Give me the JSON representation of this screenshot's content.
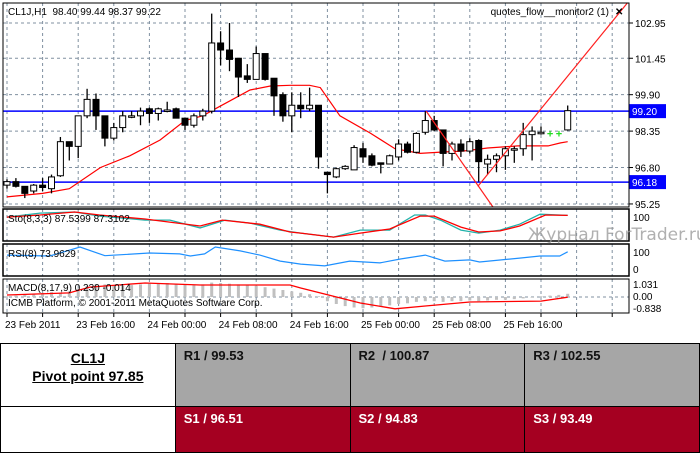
{
  "header": {
    "symbol_info": "CL1J,H1  98.40 99.44 98.37 99.22",
    "indicator_name": "quotes_flow__monitor2 (1)",
    "close_glyph": "✕"
  },
  "indicators": {
    "stoch_label": "Sto(8,3,3) 87.5399 87.3102",
    "rsi_label": "RSI(8) 73.9629",
    "macd_label": "MACD(8,17,9) 0.230 -0.014",
    "copyright": "ICMB Platform, © 2001-2011 MetaQuotes Software Corp."
  },
  "watermark": "Журнал ForTrader.ru",
  "colors": {
    "up_body": "#ffffff",
    "down_body": "#000000",
    "ma": "#ff0000",
    "level": "#0000ff",
    "stoch_main": "#20b2aa",
    "stoch_signal": "#ff0000",
    "rsi": "#1e90ff",
    "macd_hist": "#c0c0c0",
    "macd_signal": "#ff0000",
    "resistance_bg": "#a6a6a6",
    "support_bg": "#a50021"
  },
  "chart_data": {
    "type": "candlestick",
    "title": "CL1J,H1",
    "price_ticks": [
      "102.95",
      "101.45",
      "99.90",
      "98.35",
      "96.80",
      "95.25"
    ],
    "price_tick_values": [
      102.95,
      101.45,
      99.9,
      98.35,
      96.8,
      95.25
    ],
    "level_lines": [
      {
        "label": "99.20",
        "value": 99.2
      },
      {
        "label": "96.18",
        "value": 96.18
      }
    ],
    "time_labels": [
      {
        "label": "23 Feb 2011",
        "index": 0
      },
      {
        "label": "23 Feb 16:00",
        "index": 8
      },
      {
        "label": "24 Feb 00:00",
        "index": 16
      },
      {
        "label": "24 Feb 08:00",
        "index": 24
      },
      {
        "label": "24 Feb 16:00",
        "index": 32
      },
      {
        "label": "25 Feb 00:00",
        "index": 40
      },
      {
        "label": "25 Feb 08:00",
        "index": 48
      },
      {
        "label": "25 Feb 16:00",
        "index": 56
      }
    ],
    "ohlc": [
      [
        96.05,
        96.3,
        95.9,
        96.2
      ],
      [
        96.2,
        96.35,
        95.95,
        96.0
      ],
      [
        96.0,
        96.0,
        95.5,
        95.7
      ],
      [
        95.8,
        96.1,
        95.7,
        96.05
      ],
      [
        96.05,
        96.35,
        95.8,
        95.95
      ],
      [
        95.9,
        96.5,
        95.7,
        96.4
      ],
      [
        96.45,
        98.1,
        96.4,
        97.9
      ],
      [
        97.9,
        97.9,
        97.1,
        97.7
      ],
      [
        97.7,
        99.0,
        97.2,
        99.0
      ],
      [
        99.0,
        100.15,
        98.9,
        99.7
      ],
      [
        99.7,
        99.95,
        98.4,
        99.0
      ],
      [
        99.0,
        99.0,
        97.7,
        98.05
      ],
      [
        98.05,
        98.7,
        97.95,
        98.5
      ],
      [
        98.5,
        99.2,
        98.3,
        99.0
      ],
      [
        98.95,
        99.2,
        98.9,
        99.0
      ],
      [
        99.0,
        99.35,
        98.6,
        99.2
      ],
      [
        99.3,
        99.35,
        98.7,
        99.1
      ],
      [
        99.1,
        99.35,
        98.8,
        99.3
      ],
      [
        99.2,
        99.6,
        99.15,
        99.25
      ],
      [
        99.3,
        99.35,
        98.9,
        98.9
      ],
      [
        98.9,
        98.9,
        98.4,
        98.6
      ],
      [
        98.6,
        99.1,
        98.5,
        99.0
      ],
      [
        99.0,
        99.3,
        98.8,
        99.2
      ],
      [
        99.2,
        103.35,
        99.1,
        102.1
      ],
      [
        102.1,
        102.6,
        101.15,
        101.8
      ],
      [
        101.8,
        102.95,
        100.9,
        101.4
      ],
      [
        101.45,
        101.45,
        99.8,
        100.65
      ],
      [
        100.7,
        101.2,
        100.4,
        100.55
      ],
      [
        100.55,
        101.95,
        100.55,
        101.65
      ],
      [
        101.65,
        101.65,
        100.5,
        100.55
      ],
      [
        100.6,
        100.6,
        99.0,
        99.85
      ],
      [
        99.9,
        100.0,
        98.75,
        99.0
      ],
      [
        99.0,
        100.0,
        98.3,
        99.45
      ],
      [
        99.45,
        100.0,
        98.9,
        99.3
      ],
      [
        99.3,
        100.2,
        99.2,
        99.45
      ],
      [
        99.45,
        99.45,
        96.75,
        97.25
      ],
      [
        96.6,
        96.6,
        95.7,
        96.5
      ],
      [
        96.4,
        96.8,
        96.35,
        96.75
      ],
      [
        96.75,
        96.9,
        96.7,
        96.85
      ],
      [
        96.7,
        97.75,
        96.7,
        97.65
      ],
      [
        97.6,
        97.85,
        97.0,
        97.25
      ],
      [
        97.3,
        97.4,
        96.85,
        96.9
      ],
      [
        97.0,
        97.0,
        96.55,
        96.95
      ],
      [
        96.95,
        97.35,
        96.95,
        97.3
      ],
      [
        97.25,
        98.0,
        97.1,
        97.8
      ],
      [
        97.8,
        97.9,
        97.4,
        97.45
      ],
      [
        97.45,
        98.3,
        97.4,
        98.25
      ],
      [
        98.3,
        99.2,
        98.2,
        98.8
      ],
      [
        98.8,
        99.0,
        98.35,
        98.4
      ],
      [
        98.4,
        98.4,
        96.85,
        97.4
      ],
      [
        97.4,
        97.9,
        97.1,
        97.8
      ],
      [
        97.8,
        98.0,
        97.25,
        97.5
      ],
      [
        97.5,
        98.05,
        97.4,
        97.9
      ],
      [
        97.95,
        98.0,
        96.2,
        97.05
      ],
      [
        96.95,
        97.35,
        96.5,
        97.15
      ],
      [
        97.15,
        97.4,
        96.6,
        97.3
      ],
      [
        97.3,
        97.7,
        96.7,
        97.6
      ],
      [
        97.55,
        97.7,
        97.0,
        97.6
      ],
      [
        97.6,
        98.7,
        97.3,
        98.2
      ],
      [
        98.2,
        98.55,
        97.1,
        98.35
      ],
      [
        98.3,
        98.55,
        98.2,
        98.3
      ],
      null,
      null,
      [
        98.4,
        99.44,
        98.37,
        99.22
      ]
    ],
    "flow_markers": [
      [
        61,
        98.25
      ],
      [
        62,
        98.25
      ]
    ],
    "moving_average": [
      [
        0,
        95.55
      ],
      [
        4,
        95.7
      ],
      [
        7,
        95.9
      ],
      [
        10.5,
        96.8
      ],
      [
        13.8,
        97.3
      ],
      [
        17.2,
        97.97
      ],
      [
        20,
        98.8
      ],
      [
        22,
        99.0
      ],
      [
        23.4,
        99.3
      ],
      [
        27.3,
        100.1
      ],
      [
        29.6,
        100.27
      ],
      [
        31.8,
        100.3
      ],
      [
        34,
        100.3
      ],
      [
        35.2,
        100.2
      ],
      [
        37.4,
        99.0
      ],
      [
        40.8,
        98.27
      ],
      [
        43.6,
        97.6
      ],
      [
        46.4,
        97.4
      ],
      [
        49,
        97.46
      ],
      [
        51.2,
        97.5
      ],
      [
        54,
        97.63
      ],
      [
        57.4,
        97.72
      ],
      [
        60.8,
        97.72
      ],
      [
        62.2,
        97.85
      ],
      [
        63,
        97.9
      ]
    ],
    "trendlines": [
      [
        [
          47.1,
          99.2
        ],
        [
          54.6,
          95.12
        ]
      ],
      [
        [
          52.9,
          96.0
        ],
        [
          69.7,
          103.8
        ]
      ]
    ],
    "stochastic": {
      "range": [
        0,
        100
      ],
      "axis_label": "100",
      "main": [
        [
          0,
          81
        ],
        [
          3.7,
          96
        ],
        [
          7.6,
          100
        ],
        [
          10.4,
          85
        ],
        [
          15.5,
          70
        ],
        [
          18.3,
          70
        ],
        [
          21.7,
          41
        ],
        [
          24.5,
          70
        ],
        [
          27.3,
          59
        ],
        [
          30.7,
          33
        ],
        [
          33,
          22
        ],
        [
          36.7,
          7
        ],
        [
          39.7,
          33
        ],
        [
          43,
          33
        ],
        [
          45.8,
          89
        ],
        [
          47,
          89
        ],
        [
          48.7,
          70
        ],
        [
          51,
          33
        ],
        [
          53,
          22
        ],
        [
          55.4,
          33
        ],
        [
          57.6,
          55
        ],
        [
          59.9,
          92
        ],
        [
          63,
          87.54
        ]
      ],
      "signal": [
        [
          0,
          81
        ],
        [
          3.7,
          89
        ],
        [
          7.6,
          100
        ],
        [
          10.4,
          89
        ],
        [
          15.5,
          74
        ],
        [
          21.7,
          48
        ],
        [
          24.2,
          70
        ],
        [
          28.4,
          55
        ],
        [
          31.8,
          26
        ],
        [
          33,
          22
        ],
        [
          36.7,
          7
        ],
        [
          39.7,
          22
        ],
        [
          43,
          37
        ],
        [
          46.4,
          85
        ],
        [
          48,
          85
        ],
        [
          51,
          44
        ],
        [
          53,
          26
        ],
        [
          55.4,
          30
        ],
        [
          57.6,
          48
        ],
        [
          60.5,
          89
        ],
        [
          63,
          87.31
        ]
      ]
    },
    "rsi": {
      "range": [
        0,
        100
      ],
      "axis_labels": [
        "100",
        "0"
      ],
      "values": [
        [
          0,
          63
        ],
        [
          4.8,
          60
        ],
        [
          8.2,
          90
        ],
        [
          11,
          61
        ],
        [
          16,
          70
        ],
        [
          19.4,
          67
        ],
        [
          20.6,
          60
        ],
        [
          22.2,
          67
        ],
        [
          23.4,
          90
        ],
        [
          26.2,
          77
        ],
        [
          28.4,
          63
        ],
        [
          30.7,
          43
        ],
        [
          33,
          33
        ],
        [
          35.7,
          27
        ],
        [
          38.5,
          43
        ],
        [
          41.9,
          37
        ],
        [
          44.2,
          50
        ],
        [
          47,
          63
        ],
        [
          49.2,
          43
        ],
        [
          52,
          47
        ],
        [
          53.1,
          40
        ],
        [
          57.6,
          53
        ],
        [
          59.9,
          60
        ],
        [
          62.1,
          60
        ],
        [
          63,
          73.96
        ]
      ]
    },
    "macd": {
      "axis_labels": [
        "1.031",
        "0.00",
        "-0.838"
      ],
      "histogram": [
        0.05,
        0.1,
        0.15,
        0.2,
        0.3,
        0.35,
        0.3,
        0.4,
        0.6,
        0.8,
        0.9,
        0.9,
        0.85,
        0.8,
        0.85,
        0.9,
        0.95,
        1.0,
        1.0,
        0.95,
        0.9,
        0.85,
        0.9,
        1.03,
        1.0,
        0.95,
        0.9,
        0.85,
        0.8,
        0.7,
        0.6,
        0.5,
        0.4,
        0.3,
        0.2,
        0.05,
        -0.3,
        -0.5,
        -0.65,
        -0.75,
        -0.8,
        -0.75,
        -0.7,
        -0.6,
        -0.5,
        -0.45,
        -0.35,
        -0.3,
        -0.3,
        -0.35,
        -0.3,
        -0.3,
        -0.25,
        -0.3,
        -0.25,
        -0.2,
        -0.2,
        -0.15,
        -0.1,
        -0.05,
        0.05,
        0.1,
        0.15,
        0.23
      ],
      "signal": [
        [
          0,
          0.14
        ],
        [
          7,
          0.29
        ],
        [
          9.3,
          0.71
        ],
        [
          15.5,
          1.0
        ],
        [
          21.7,
          0.86
        ],
        [
          31.8,
          0.86
        ],
        [
          33,
          0.64
        ],
        [
          39.7,
          -0.43
        ],
        [
          43.6,
          -0.84
        ],
        [
          47,
          -0.64
        ],
        [
          52,
          -0.36
        ],
        [
          60,
          -0.29
        ],
        [
          63,
          -0.014
        ]
      ]
    }
  },
  "pivot_table": {
    "symbol": "CL1J",
    "pivot": "Pivot point 97.85",
    "resistance": [
      "R1 / 99.53",
      "R2  / 100.87",
      "R3 / 102.55"
    ],
    "support": [
      "S1 / 96.51",
      "S2 / 94.83",
      "S3 / 93.49"
    ]
  }
}
